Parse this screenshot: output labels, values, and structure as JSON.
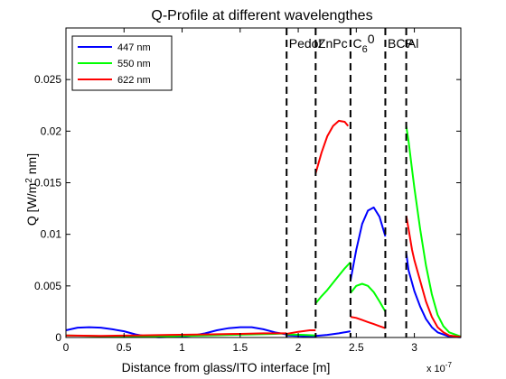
{
  "chart_data": {
    "type": "line",
    "title": "Q-Profile at different wavelengthes",
    "xlabel": "Distance from glass/ITO interface [m]",
    "ylabel": {
      "prefix": "Q  [W/m",
      "sup": "2",
      "suffix": " nm]"
    },
    "x_exponent": {
      "base": "x 10",
      "exp": "-7"
    },
    "xlim": [
      0,
      3.4
    ],
    "ylim": [
      0,
      0.03
    ],
    "xticks": [
      0,
      0.5,
      1,
      1.5,
      2,
      2.5,
      3
    ],
    "xtick_labels": [
      "0",
      "0.5",
      "1",
      "1.5",
      "2",
      "2.5",
      "3"
    ],
    "yticks": [
      0,
      0.005,
      0.01,
      0.015,
      0.02,
      0.025
    ],
    "ytick_labels": [
      "0",
      "0.005",
      "0.01",
      "0.015",
      "0.02",
      "0.025"
    ],
    "grid": false,
    "legend_position": "top-left",
    "layer_boundaries": [
      1.9,
      2.15,
      2.45,
      2.75,
      2.93
    ],
    "layer_labels": [
      {
        "text": "Pedot",
        "x": 1.92
      },
      {
        "text": "ZnPc",
        "x": 2.17
      },
      {
        "text": "C",
        "sub": "6",
        "rest": "0",
        "x": 2.47
      },
      {
        "text": "BCP",
        "x": 2.77
      },
      {
        "text": "Al",
        "x": 2.94
      }
    ],
    "series": [
      {
        "name": "447 nm",
        "color": "#0000ff",
        "segments": [
          [
            [
              0,
              0.0007
            ],
            [
              0.1,
              0.00095
            ],
            [
              0.2,
              0.001
            ],
            [
              0.3,
              0.00095
            ],
            [
              0.4,
              0.0008
            ],
            [
              0.5,
              0.0006
            ],
            [
              0.6,
              0.0003
            ],
            [
              0.7,
              0.0001
            ],
            [
              0.8,
              3e-05
            ],
            [
              0.9,
              5e-05
            ],
            [
              1.0,
              0.0001
            ],
            [
              1.1,
              0.0002
            ],
            [
              1.2,
              0.0004
            ],
            [
              1.3,
              0.0007
            ],
            [
              1.4,
              0.0009
            ],
            [
              1.5,
              0.001
            ],
            [
              1.6,
              0.001
            ],
            [
              1.7,
              0.0008
            ],
            [
              1.8,
              0.0005
            ],
            [
              1.9,
              0.0003
            ]
          ],
          [
            [
              1.9,
              0.0002
            ],
            [
              2.0,
              0.00015
            ],
            [
              2.1,
              0.0001
            ],
            [
              2.15,
              0.0001
            ]
          ],
          [
            [
              2.15,
              0.00015
            ],
            [
              2.25,
              0.00025
            ],
            [
              2.35,
              0.0004
            ],
            [
              2.45,
              0.0006
            ]
          ],
          [
            [
              2.45,
              0.0055
            ],
            [
              2.5,
              0.0085
            ],
            [
              2.55,
              0.011
            ],
            [
              2.6,
              0.0123
            ],
            [
              2.65,
              0.0126
            ],
            [
              2.7,
              0.0117
            ],
            [
              2.75,
              0.0098
            ]
          ],
          [
            [
              2.93,
              0.0082
            ],
            [
              2.95,
              0.0065
            ],
            [
              3.0,
              0.0045
            ],
            [
              3.05,
              0.003
            ],
            [
              3.1,
              0.0018
            ],
            [
              3.15,
              0.001
            ],
            [
              3.2,
              0.0005
            ],
            [
              3.3,
              0.0001
            ],
            [
              3.4,
              2e-05
            ]
          ]
        ]
      },
      {
        "name": "550 nm",
        "color": "#00ff00",
        "segments": [
          [
            [
              0,
              0.0002
            ],
            [
              0.2,
              0.00015
            ],
            [
              0.4,
              0.0001
            ],
            [
              0.6,
              8e-05
            ],
            [
              0.8,
              0.0001
            ],
            [
              1.0,
              0.00015
            ],
            [
              1.2,
              0.0002
            ],
            [
              1.4,
              0.00025
            ],
            [
              1.6,
              0.0003
            ],
            [
              1.8,
              0.00035
            ],
            [
              1.9,
              0.0004
            ]
          ],
          [
            [
              1.9,
              0.0003
            ],
            [
              2.05,
              0.00025
            ],
            [
              2.15,
              0.0002
            ]
          ],
          [
            [
              2.15,
              0.0033
            ],
            [
              2.2,
              0.004
            ],
            [
              2.25,
              0.0046
            ],
            [
              2.3,
              0.0053
            ],
            [
              2.35,
              0.006
            ],
            [
              2.4,
              0.0067
            ],
            [
              2.45,
              0.0073
            ]
          ],
          [
            [
              2.45,
              0.0043
            ],
            [
              2.5,
              0.005
            ],
            [
              2.55,
              0.0052
            ],
            [
              2.6,
              0.005
            ],
            [
              2.65,
              0.0044
            ],
            [
              2.7,
              0.0035
            ],
            [
              2.75,
              0.0025
            ]
          ],
          [
            [
              2.93,
              0.0205
            ],
            [
              2.95,
              0.019
            ],
            [
              2.98,
              0.0163
            ],
            [
              3.0,
              0.0145
            ],
            [
              3.05,
              0.0105
            ],
            [
              3.1,
              0.007
            ],
            [
              3.15,
              0.0042
            ],
            [
              3.2,
              0.0022
            ],
            [
              3.25,
              0.0011
            ],
            [
              3.3,
              0.0005
            ],
            [
              3.4,
              0.0001
            ]
          ]
        ]
      },
      {
        "name": "622 nm",
        "color": "#ff0000",
        "segments": [
          [
            [
              0,
              0.0002
            ],
            [
              0.3,
              0.00015
            ],
            [
              0.6,
              0.0002
            ],
            [
              0.9,
              0.00025
            ],
            [
              1.2,
              0.0003
            ],
            [
              1.5,
              0.00035
            ],
            [
              1.7,
              0.0004
            ],
            [
              1.9,
              0.0004
            ]
          ],
          [
            [
              1.9,
              0.00035
            ],
            [
              2.0,
              0.00055
            ],
            [
              2.1,
              0.0007
            ],
            [
              2.15,
              0.0007
            ]
          ],
          [
            [
              2.15,
              0.0159
            ],
            [
              2.2,
              0.0179
            ],
            [
              2.25,
              0.0195
            ],
            [
              2.3,
              0.0205
            ],
            [
              2.35,
              0.021
            ],
            [
              2.4,
              0.0209
            ],
            [
              2.43,
              0.0205
            ]
          ],
          [
            [
              2.45,
              0.002
            ],
            [
              2.5,
              0.0019
            ],
            [
              2.55,
              0.0017
            ],
            [
              2.6,
              0.0015
            ],
            [
              2.65,
              0.0013
            ],
            [
              2.7,
              0.0011
            ],
            [
              2.75,
              0.0009
            ]
          ],
          [
            [
              2.93,
              0.0118
            ],
            [
              2.95,
              0.0105
            ],
            [
              2.98,
              0.0085
            ],
            [
              3.0,
              0.0075
            ],
            [
              3.05,
              0.0055
            ],
            [
              3.1,
              0.0035
            ],
            [
              3.15,
              0.002
            ],
            [
              3.2,
              0.001
            ],
            [
              3.25,
              0.0005
            ],
            [
              3.3,
              0.0002
            ],
            [
              3.4,
              5e-05
            ]
          ]
        ]
      }
    ]
  }
}
